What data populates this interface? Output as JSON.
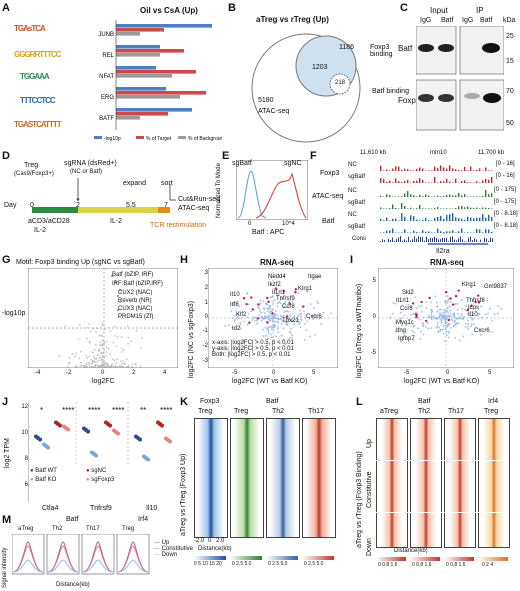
{
  "panels": {
    "A": {
      "label": "A",
      "title": "Oil vs CsA (Up)",
      "motif_logos": [
        "TGAsTCA",
        "GGGRRTTTCC",
        "TGGAAA",
        "TTTCCTCC",
        "TGASTCATTTT"
      ],
      "legend": [
        "-log10p",
        "% of Target",
        "% of Background"
      ],
      "chart_data": {
        "type": "bar",
        "categories": [
          "JUNB",
          "REL",
          "NFAT",
          "ERG",
          "BATF"
        ],
        "series": [
          {
            "name": "-log10p",
            "values": [
              48,
              22,
              20,
              25,
              38
            ]
          },
          {
            "name": "% of Target",
            "values": [
              24,
              34,
              40,
              45,
              26
            ]
          },
          {
            "name": "% of Background",
            "values": [
              12,
              22,
              28,
              32,
              12
            ]
          }
        ],
        "colors": [
          "#4e7fc4",
          "#cc4a4a",
          "#9a9a9a"
        ]
      }
    },
    "B": {
      "label": "B",
      "title": "aTreg vs rTreg (Up)",
      "venn_values": [
        "1186",
        "1203",
        "5180",
        "218"
      ],
      "venn_labels": [
        "Foxp3 binding",
        "Batf binding",
        "ATAC-seq"
      ]
    },
    "C": {
      "label": "C",
      "col_headers": [
        "Input",
        "IP"
      ],
      "lane_labels": [
        "IgG",
        "Batf",
        "IgG",
        "Batf"
      ],
      "unit": "kDa",
      "rows": [
        "Batf",
        "Foxp3"
      ],
      "markers": [
        "25",
        "15",
        "70",
        "50"
      ]
    },
    "D": {
      "label": "D",
      "steps": [
        "Treg",
        "(Cas9/Foxp3+)",
        "sgRNA (dsRed+)",
        "(NC or Batf)",
        "expand",
        "sort",
        "Cut&Run-seq",
        "ATAC-seq",
        "TCR restimulation"
      ],
      "day_label": "Day",
      "days": [
        "0",
        "2",
        "5.5",
        "7"
      ],
      "bottom_labels": [
        "aCD3/aCD28",
        "IL-2",
        "IL-2"
      ]
    },
    "E": {
      "label": "E",
      "ylabel": "Normalized To Mode",
      "xlabel": "Batf : APC",
      "series": [
        "sgBatf",
        "sgNC"
      ],
      "ticks": [
        "0",
        "10^4"
      ]
    },
    "F": {
      "label": "F",
      "coords": [
        "11,610 kb",
        "mm10",
        "11,700 kb"
      ],
      "track_groups": [
        "Foxp3",
        "ATAC-seq",
        "Batf"
      ],
      "track_names": [
        "NC",
        "sgBatf",
        "NC",
        "sgBatf",
        "NC",
        "sgBatf"
      ],
      "ranges": [
        "[0 - 16]",
        "[0 - 16]",
        "[0 - 175]",
        "[0 - 175]",
        "[0 - 8.18]",
        "[0 - 8.18]"
      ],
      "cons_label": "Cons",
      "gene": "Il2ra"
    },
    "G": {
      "label": "G",
      "title": "Motif: Foxp3 binding Up (sgNC vs sgBatf)",
      "ylabel": "-log10p",
      "xlabel": "log2FC",
      "x_ticks": [
        "-4",
        "-2",
        "0",
        "2",
        "4"
      ],
      "annotations": [
        "Batf (bZIP, IRF)",
        "IRF:Batf (bZIP,IRF)",
        "CUX2 (NAC)",
        "Reverb (NR)",
        "CUX3 (NAC)",
        "PRDM15 (Zf)"
      ]
    },
    "H": {
      "label": "H",
      "title": "RNA-seq",
      "ylabel": "log2FC (NC vs sgFoxp3)",
      "xlabel": "log2FC (WT vs Batf KO)",
      "x_ticks": [
        "-5",
        "0",
        "5"
      ],
      "y_ticks": [
        "-3",
        "-2",
        "-1",
        "0",
        "1",
        "2",
        "3"
      ],
      "genes": [
        "Nedd4",
        "Ikzf2",
        "Il1rl1",
        "Tnfrsf9",
        "Klrg1",
        "Il10",
        "Itgae",
        "Ccr8",
        "Cxcr6",
        "Id2",
        "Irf8",
        "Tbx21",
        "Klf2"
      ],
      "legend": [
        "x-axis: |log2FC| > 0.5, p < 0.01",
        "y-axis: |log2FC| > 0.5, p < 0.01",
        "Both: |log2FC| > 0.5, p < 0.01"
      ]
    },
    "I": {
      "label": "I",
      "title": "RNA-seq",
      "ylabel": "log2FC (aTreg vs aWTmaribo)",
      "xlabel": "log2FC (WT vs Batf KO)",
      "x_ticks": [
        "-5",
        "0",
        "5"
      ],
      "y_ticks": [
        "-5",
        "0",
        "5"
      ],
      "genes": [
        "Klrg1",
        "Gm9837",
        "Ski2",
        "Il1rl1",
        "Tnfrsf8",
        "Icos",
        "Ccr8",
        "Il10",
        "Myo1c",
        "Ifng",
        "Igfbp7",
        "Cxcr6"
      ]
    },
    "J": {
      "label": "J",
      "ylabel": "log2 TPM",
      "y_ticks": [
        "6",
        "8",
        "10",
        "12"
      ],
      "groups": [
        "Ctla4",
        "Tnfrsf9",
        "Il10"
      ],
      "sig": [
        "*",
        "****",
        "****",
        "****",
        "**",
        "****"
      ],
      "legend": [
        "Batf WT",
        "Batf KO",
        "sgNC",
        "sgFoxp3"
      ]
    },
    "K": {
      "label": "K",
      "top_headers": [
        "Foxp3",
        "Batf"
      ],
      "columns": [
        "Treg",
        "Treg",
        "Th2",
        "Th17"
      ],
      "ylabel": "aTreg vs rTreg (Foxp3 Up)",
      "x_ticks": [
        "-2.0",
        "0",
        "2.0"
      ],
      "xlabel": "Distance(kb)",
      "scales": [
        "0 5 10 15 20",
        "0 2.5 5.0",
        "0 2.5 5.0",
        "0 2.5 5.0"
      ]
    },
    "L": {
      "label": "L",
      "top_headers": [
        "Batf",
        "Irf4"
      ],
      "columns": [
        "aTreg",
        "Th2",
        "Th17",
        "Treg"
      ],
      "rows": [
        "Up",
        "Constitutive",
        "Down"
      ],
      "ylabel": "aTreg vs rTreg (Foxp3 Binding)",
      "xlabel": "Distance(kb)",
      "scales": [
        "0 0.8 1.6",
        "0 0.8 1.6",
        "0 0.8 1.6",
        "0 2 4"
      ]
    },
    "M": {
      "label": "M",
      "top_headers": [
        "Batf",
        "Irf4"
      ],
      "columns": [
        "aTreg",
        "Th2",
        "Th17",
        "Treg"
      ],
      "ylabel": "Signal intensity",
      "xlabel": "Distance(kb)",
      "legend": [
        "Up",
        "Constitutive",
        "Down"
      ],
      "legend_colors": [
        "#b44fa0",
        "#e07a7a",
        "#8fb8e0"
      ]
    }
  }
}
